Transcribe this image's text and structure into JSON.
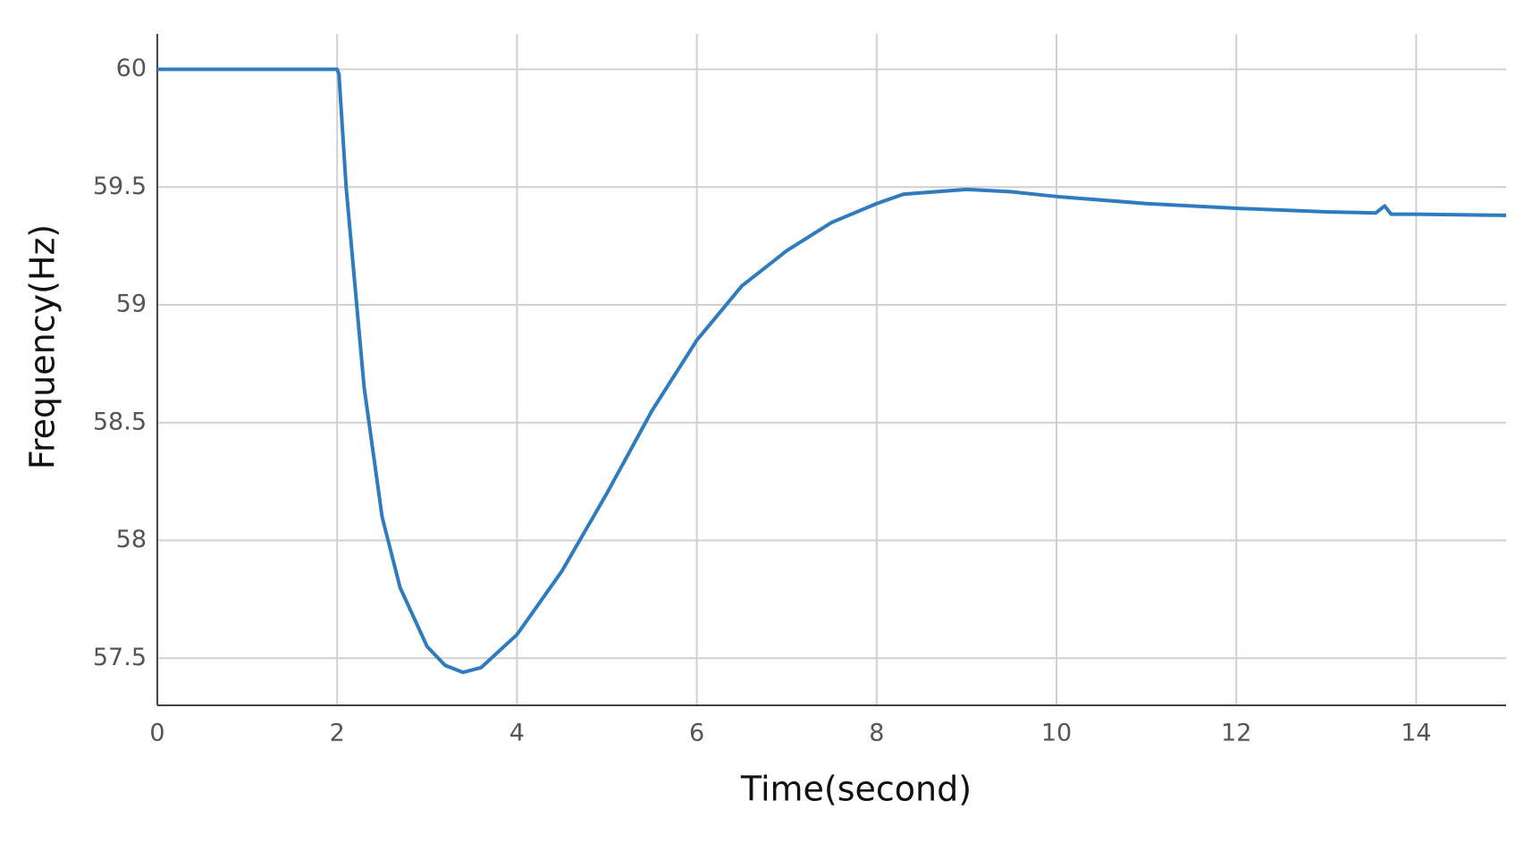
{
  "chart_data": {
    "type": "line",
    "x_label": "Time(second)",
    "y_label": "Frequency(Hz)",
    "x": [
      0,
      2,
      2.02,
      2.1,
      2.3,
      2.5,
      2.7,
      3.0,
      3.2,
      3.4,
      3.6,
      3.8,
      4.0,
      4.5,
      5.0,
      5.5,
      6.0,
      6.5,
      7.0,
      7.5,
      8.0,
      8.3,
      9.0,
      9.5,
      10,
      11,
      12,
      13,
      13.55,
      13.65,
      13.72,
      14,
      15
    ],
    "series": [
      {
        "color": "#2f7bbf",
        "values": [
          60,
          60,
          59.98,
          59.5,
          58.65,
          58.1,
          57.8,
          57.55,
          57.47,
          57.44,
          57.46,
          57.53,
          57.6,
          57.87,
          58.2,
          58.55,
          58.85,
          59.08,
          59.23,
          59.35,
          59.43,
          59.47,
          59.49,
          59.48,
          59.46,
          59.43,
          59.41,
          59.395,
          59.39,
          59.42,
          59.385,
          59.385,
          59.38
        ]
      }
    ],
    "xlim": [
      0,
      15
    ],
    "xticks": [
      0,
      2,
      4,
      6,
      8,
      10,
      12,
      14
    ],
    "ylim": [
      57.3,
      60.15
    ],
    "yticks": [
      57.5,
      58,
      58.5,
      59,
      59.5,
      60
    ],
    "grid": true
  }
}
